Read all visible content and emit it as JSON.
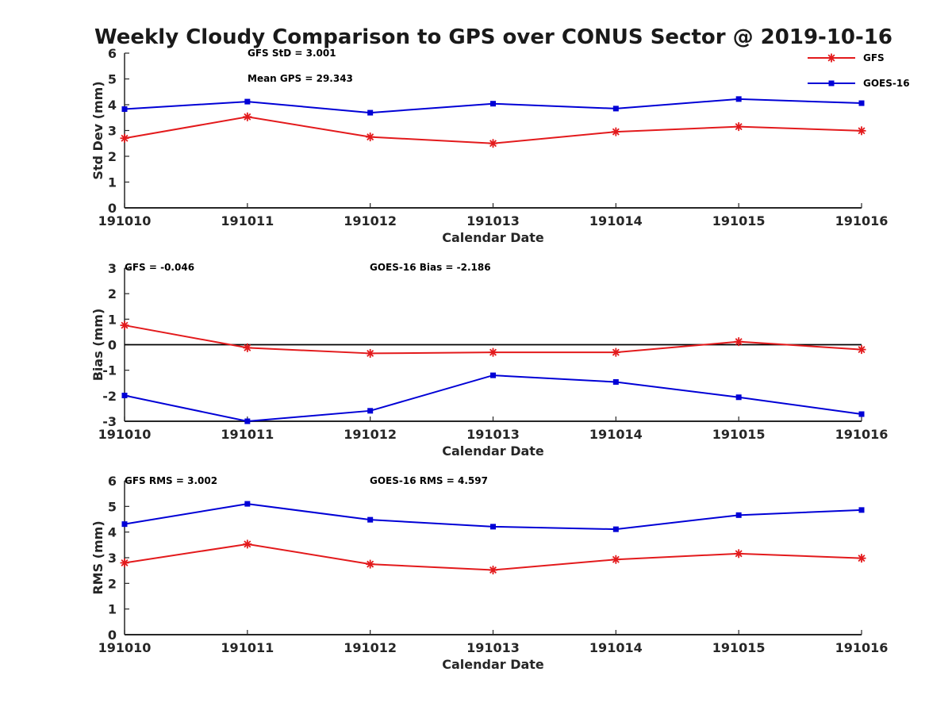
{
  "title": "Weekly Cloudy Comparison to GPS over CONUS Sector @ 2019-10-16",
  "colors": {
    "gfs": "#e31a1c",
    "goes": "#0000d6",
    "axis": "#262626",
    "zero_line": "#000000"
  },
  "legend": {
    "placement": "top-right",
    "entries": [
      {
        "name": "GFS",
        "marker": "star",
        "color": "#e31a1c"
      },
      {
        "name": "GOES-16",
        "marker": "square",
        "color": "#0000d6"
      }
    ]
  },
  "chart_data": [
    {
      "type": "line",
      "ylabel": "Std Dev (mm)",
      "xlabel": "Calendar Date",
      "categories": [
        "191010",
        "191011",
        "191012",
        "191013",
        "191014",
        "191015",
        "191016"
      ],
      "ylim": [
        0,
        6
      ],
      "yticks": [
        "0",
        "1",
        "2",
        "3",
        "4",
        "5",
        "6"
      ],
      "grid": false,
      "zero_line": false,
      "annotations": [
        "GFS StD = 3.001",
        "Mean GPS = 29.343"
      ],
      "series": [
        {
          "name": "GFS",
          "values": [
            2.7,
            3.53,
            2.75,
            2.5,
            2.95,
            3.15,
            2.99
          ]
        },
        {
          "name": "GOES-16",
          "values": [
            3.83,
            4.12,
            3.69,
            4.04,
            3.85,
            4.22,
            4.06
          ]
        }
      ]
    },
    {
      "type": "line",
      "ylabel": "Bias (mm)",
      "xlabel": "Calendar Date",
      "categories": [
        "191010",
        "191011",
        "191012",
        "191013",
        "191014",
        "191015",
        "191016"
      ],
      "ylim": [
        -3,
        3
      ],
      "yticks": [
        "-3",
        "-2",
        "-1",
        "0",
        "1",
        "2",
        "3"
      ],
      "grid": false,
      "zero_line": true,
      "annotations": [
        "GFS = -0.046",
        "GOES-16 Bias  = -2.186"
      ],
      "series": [
        {
          "name": "GFS",
          "values": [
            0.76,
            -0.12,
            -0.34,
            -0.3,
            -0.3,
            0.12,
            -0.19
          ]
        },
        {
          "name": "GOES-16",
          "values": [
            -1.99,
            -3.0,
            -2.59,
            -1.2,
            -1.46,
            -2.06,
            -2.72
          ]
        }
      ]
    },
    {
      "type": "line",
      "ylabel": "RMS (mm)",
      "xlabel": "Calendar Date",
      "categories": [
        "191010",
        "191011",
        "191012",
        "191013",
        "191014",
        "191015",
        "191016"
      ],
      "ylim": [
        0,
        6
      ],
      "yticks": [
        "0",
        "1",
        "2",
        "3",
        "4",
        "5",
        "6"
      ],
      "grid": false,
      "zero_line": false,
      "annotations": [
        "GFS RMS = 3.002",
        "GOES-16 RMS = 4.597"
      ],
      "series": [
        {
          "name": "GFS",
          "values": [
            2.8,
            3.53,
            2.75,
            2.52,
            2.93,
            3.16,
            2.98
          ]
        },
        {
          "name": "GOES-16",
          "values": [
            4.31,
            5.1,
            4.48,
            4.21,
            4.11,
            4.66,
            4.86
          ]
        }
      ]
    }
  ]
}
